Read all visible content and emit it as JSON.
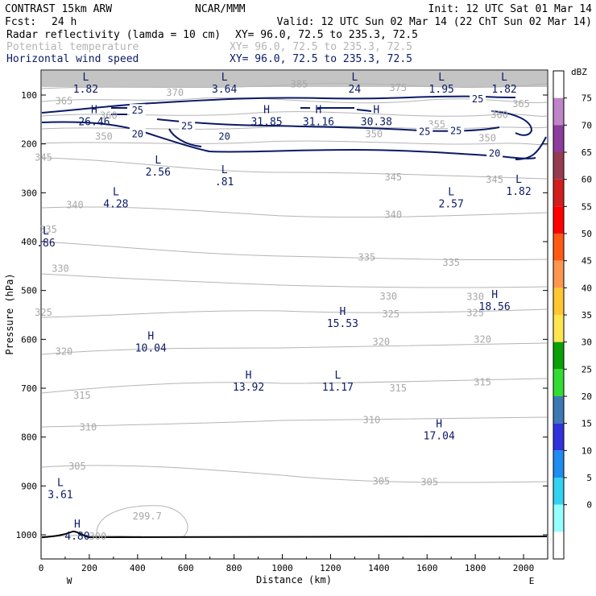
{
  "header": {
    "model": "CONTRAST 15km ARW",
    "source": "NCAR/MMM",
    "init": "Init: 12 UTC Sat 01 Mar 14",
    "fcst_label": "Fcst:",
    "fcst_value": "24 h",
    "valid": "Valid: 12 UTC Sun 02 Mar 14 (22 ChT Sun 02 Mar 14)",
    "fields": [
      {
        "name": "Radar reflectivity (lamda = 10 cm)",
        "xy": "XY=  96.0, 72.5 to 235.3, 72.5",
        "color": "#000000"
      },
      {
        "name": "Potential temperature",
        "xy": "XY=  96.0, 72.5 to 235.3, 72.5",
        "color": "#b4b4b4"
      },
      {
        "name": "Horizontal wind speed",
        "xy": "XY=  96.0, 72.5 to 235.3, 72.5",
        "color": "#0b1a66"
      }
    ]
  },
  "chart_data": {
    "type": "cross-section",
    "xlabel": "Distance (km)",
    "ylabel": "Pressure (hPa)",
    "x_ticks": [
      "0",
      "200",
      "400",
      "600",
      "800",
      "1000",
      "1200",
      "1400",
      "1600",
      "1800",
      "2000"
    ],
    "y_ticks": [
      "100",
      "200",
      "300",
      "400",
      "500",
      "600",
      "700",
      "800",
      "900",
      "1000"
    ],
    "xlim": [
      0,
      2100
    ],
    "ylim": [
      1050,
      50
    ],
    "x_end_labels": {
      "left": "W",
      "right": "E"
    },
    "colorbar": {
      "unit": "dBZ",
      "labels": [
        "75",
        "70",
        "65",
        "60",
        "55",
        "50",
        "45",
        "40",
        "35",
        "30",
        "25",
        "20",
        "15",
        "10",
        "5",
        "0"
      ],
      "colors": [
        "#ffffff",
        "#c084c8",
        "#8c3c9c",
        "#963c50",
        "#d21e1e",
        "#ff0000",
        "#ff5a14",
        "#ff9650",
        "#ffc832",
        "#ffe650",
        "#0aa00a",
        "#32dc32",
        "#3c78b4",
        "#3232dc",
        "#1e8cf0",
        "#32d2f0",
        "#96ffff",
        "#ffffff"
      ]
    },
    "theta_labels": [
      {
        "text": "385",
        "x": 1070,
        "p": 78
      },
      {
        "text": "375",
        "x": 1480,
        "p": 85
      },
      {
        "text": "370",
        "x": 555,
        "p": 95
      },
      {
        "text": "365",
        "x": 95,
        "p": 112
      },
      {
        "text": "365",
        "x": 1990,
        "p": 118
      },
      {
        "text": "360",
        "x": 280,
        "p": 142
      },
      {
        "text": "360",
        "x": 1900,
        "p": 140
      },
      {
        "text": "355",
        "x": 1640,
        "p": 160
      },
      {
        "text": "350",
        "x": 260,
        "p": 185
      },
      {
        "text": "350",
        "x": 1380,
        "p": 180
      },
      {
        "text": "350",
        "x": 1850,
        "p": 188
      },
      {
        "text": "345",
        "x": 10,
        "p": 228
      },
      {
        "text": "345",
        "x": 1460,
        "p": 268
      },
      {
        "text": "345",
        "x": 1880,
        "p": 273
      },
      {
        "text": "340",
        "x": 140,
        "p": 325
      },
      {
        "text": "340",
        "x": 1460,
        "p": 345
      },
      {
        "text": "335",
        "x": 30,
        "p": 375
      },
      {
        "text": "335",
        "x": 1350,
        "p": 432
      },
      {
        "text": "335",
        "x": 1700,
        "p": 443
      },
      {
        "text": "330",
        "x": 80,
        "p": 455
      },
      {
        "text": "330",
        "x": 1440,
        "p": 512
      },
      {
        "text": "330",
        "x": 1800,
        "p": 513
      },
      {
        "text": "325",
        "x": 10,
        "p": 545
      },
      {
        "text": "325",
        "x": 1450,
        "p": 548
      },
      {
        "text": "325",
        "x": 1800,
        "p": 546
      },
      {
        "text": "320",
        "x": 95,
        "p": 625
      },
      {
        "text": "320",
        "x": 1410,
        "p": 605
      },
      {
        "text": "320",
        "x": 1830,
        "p": 600
      },
      {
        "text": "315",
        "x": 170,
        "p": 715
      },
      {
        "text": "315",
        "x": 1480,
        "p": 700
      },
      {
        "text": "315",
        "x": 1830,
        "p": 688
      },
      {
        "text": "310",
        "x": 195,
        "p": 780
      },
      {
        "text": "310",
        "x": 1370,
        "p": 765
      },
      {
        "text": "305",
        "x": 150,
        "p": 860
      },
      {
        "text": "305",
        "x": 1410,
        "p": 890
      },
      {
        "text": "305",
        "x": 1610,
        "p": 892
      },
      {
        "text": "300",
        "x": 235,
        "p": 1003
      },
      {
        "text": "299.7",
        "x": 440,
        "p": 962
      }
    ],
    "wind_labels": [
      {
        "text": "25",
        "x": 400,
        "p": 130
      },
      {
        "text": "25",
        "x": 605,
        "p": 162
      },
      {
        "text": "20",
        "x": 400,
        "p": 178
      },
      {
        "text": "20",
        "x": 760,
        "p": 183
      },
      {
        "text": "25",
        "x": 1590,
        "p": 173
      },
      {
        "text": "25",
        "x": 1720,
        "p": 172
      },
      {
        "text": "25",
        "x": 1810,
        "p": 107
      },
      {
        "text": "20",
        "x": 1880,
        "p": 218
      }
    ],
    "extrema": [
      {
        "kind": "L",
        "value": "1.82",
        "x": 185,
        "p": 75
      },
      {
        "kind": "L",
        "value": "3.64",
        "x": 760,
        "p": 75
      },
      {
        "kind": "L",
        "value": "24",
        "x": 1300,
        "p": 75
      },
      {
        "kind": "L",
        "value": "1.95",
        "x": 1660,
        "p": 75
      },
      {
        "kind": "L",
        "value": "1.82",
        "x": 1920,
        "p": 75
      },
      {
        "kind": "H",
        "value": "26.46",
        "x": 220,
        "p": 142
      },
      {
        "kind": "H",
        "value": "31.85",
        "x": 935,
        "p": 142
      },
      {
        "kind": "H",
        "value": "31.16",
        "x": 1150,
        "p": 142
      },
      {
        "kind": "H",
        "value": "30.38",
        "x": 1390,
        "p": 142
      },
      {
        "kind": "L",
        "value": "2.56",
        "x": 485,
        "p": 245
      },
      {
        "kind": "L",
        "value": ".81",
        "x": 760,
        "p": 265
      },
      {
        "kind": "L",
        "value": "4.28",
        "x": 310,
        "p": 310
      },
      {
        "kind": "L",
        "value": "2.57",
        "x": 1700,
        "p": 310
      },
      {
        "kind": "L",
        "value": "1.82",
        "x": 1980,
        "p": 285
      },
      {
        "kind": "L",
        "value": ".86",
        "x": 20,
        "p": 390
      },
      {
        "kind": "H",
        "value": "18.56",
        "x": 1880,
        "p": 520
      },
      {
        "kind": "H",
        "value": "15.53",
        "x": 1250,
        "p": 555
      },
      {
        "kind": "H",
        "value": "10.04",
        "x": 455,
        "p": 605
      },
      {
        "kind": "H",
        "value": "13.92",
        "x": 860,
        "p": 685
      },
      {
        "kind": "L",
        "value": "11.17",
        "x": 1230,
        "p": 685
      },
      {
        "kind": "H",
        "value": "17.04",
        "x": 1650,
        "p": 785
      },
      {
        "kind": "L",
        "value": "3.61",
        "x": 80,
        "p": 905
      },
      {
        "kind": "H",
        "value": "4.80",
        "x": 150,
        "p": 990
      }
    ]
  }
}
